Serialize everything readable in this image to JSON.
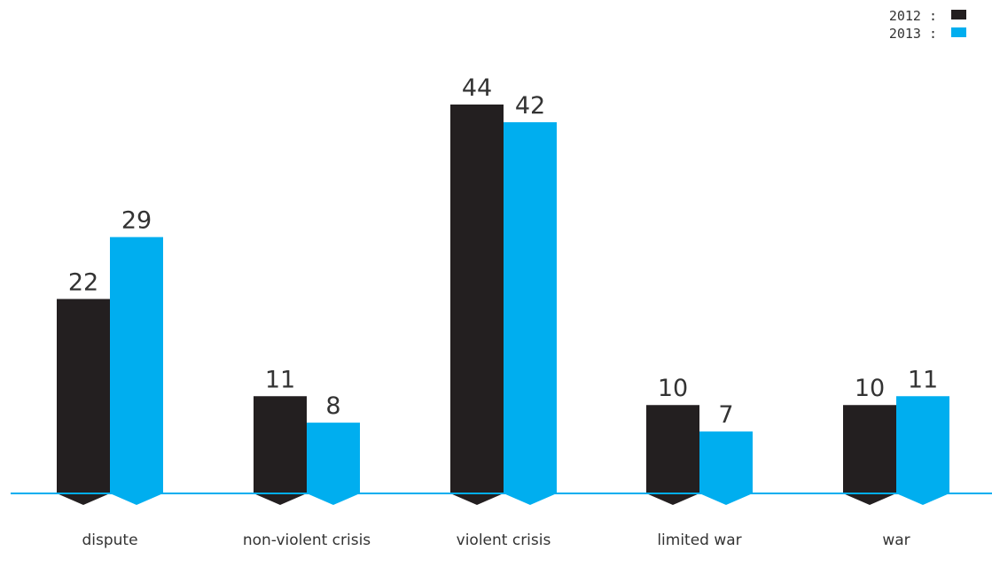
{
  "chart_data": {
    "type": "bar",
    "categories": [
      "dispute",
      "non-violent crisis",
      "violent crisis",
      "limited war",
      "war"
    ],
    "series": [
      {
        "name": "2012",
        "values": [
          22,
          11,
          44,
          10,
          10
        ]
      },
      {
        "name": "2013",
        "values": [
          29,
          8,
          42,
          7,
          11
        ]
      }
    ],
    "legend": {
      "position": "top-right",
      "entries": [
        {
          "label": "2012 :",
          "color": "#231f20"
        },
        {
          "label": "2013 :",
          "color": "#00aeef"
        }
      ]
    },
    "ylim": [
      0,
      44
    ],
    "grid": false,
    "colors": {
      "2012": "#231f20",
      "2013": "#00aeef",
      "baseline": "#00aeef"
    }
  }
}
